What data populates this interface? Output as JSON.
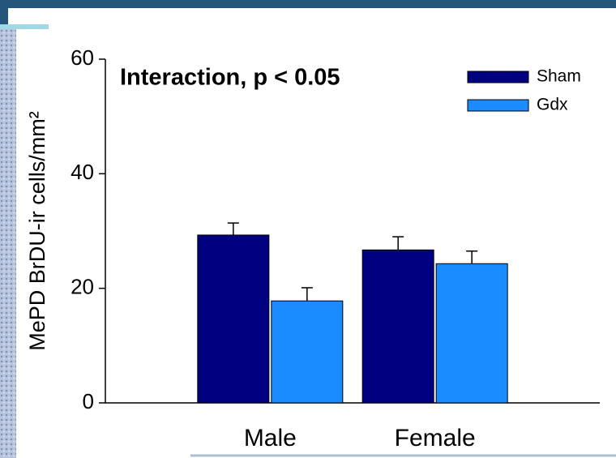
{
  "chart_data": {
    "type": "bar",
    "annotation": "Interaction, p < 0.05",
    "y_label": "MePD BrDU-ir cells/mm²",
    "categories": [
      "Male",
      "Female"
    ],
    "series": [
      {
        "name": "Sham",
        "color": "#000080",
        "values": [
          29.3,
          26.7
        ],
        "errors": [
          2.1,
          2.3
        ]
      },
      {
        "name": "Gdx",
        "color": "#1a8cff",
        "values": [
          17.8,
          24.3
        ],
        "errors": [
          2.3,
          2.2
        ]
      }
    ],
    "ylim": [
      0,
      60
    ],
    "yticks": [
      0,
      20,
      40,
      60
    ]
  }
}
